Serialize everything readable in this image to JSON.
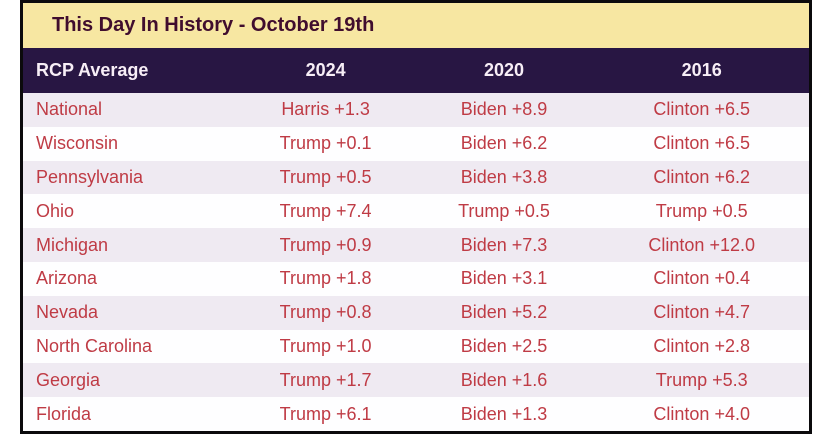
{
  "title": "This Day In History - October 19th",
  "colors": {
    "title_bar_bg": "#f7e7a2",
    "title_text": "#400d2e",
    "header_bg": "#281643",
    "header_text": "#f7eef6",
    "row_text": "#bf3b45",
    "row_odd_bg": "#efeaf2",
    "row_even_bg": "#fefeff",
    "border": "#0b0a0c"
  },
  "table": {
    "columns": [
      "RCP Average",
      "2024",
      "2020",
      "2016"
    ],
    "rows": [
      [
        "National",
        "Harris +1.3",
        "Biden +8.9",
        "Clinton +6.5"
      ],
      [
        "Wisconsin",
        "Trump +0.1",
        "Biden +6.2",
        "Clinton +6.5"
      ],
      [
        "Pennsylvania",
        "Trump +0.5",
        "Biden +3.8",
        "Clinton +6.2"
      ],
      [
        "Ohio",
        "Trump +7.4",
        "Trump +0.5",
        "Trump +0.5"
      ],
      [
        "Michigan",
        "Trump +0.9",
        "Biden +7.3",
        "Clinton +12.0"
      ],
      [
        "Arizona",
        "Trump +1.8",
        "Biden +3.1",
        "Clinton +0.4"
      ],
      [
        "Nevada",
        "Trump +0.8",
        "Biden +5.2",
        "Clinton +4.7"
      ],
      [
        "North Carolina",
        "Trump +1.0",
        "Biden +2.5",
        "Clinton +2.8"
      ],
      [
        "Georgia",
        "Trump +1.7",
        "Biden +1.6",
        "Trump +5.3"
      ],
      [
        "Florida",
        "Trump +6.1",
        "Biden +1.3",
        "Clinton +4.0"
      ]
    ]
  },
  "chart_data": {
    "type": "table",
    "title": "This Day In History - October 19th",
    "columns": [
      "RCP Average",
      "2024",
      "2020",
      "2016"
    ],
    "rows": [
      [
        "National",
        "Harris +1.3",
        "Biden +8.9",
        "Clinton +6.5"
      ],
      [
        "Wisconsin",
        "Trump +0.1",
        "Biden +6.2",
        "Clinton +6.5"
      ],
      [
        "Pennsylvania",
        "Trump +0.5",
        "Biden +3.8",
        "Clinton +6.2"
      ],
      [
        "Ohio",
        "Trump +7.4",
        "Trump +0.5",
        "Trump +0.5"
      ],
      [
        "Michigan",
        "Trump +0.9",
        "Biden +7.3",
        "Clinton +12.0"
      ],
      [
        "Arizona",
        "Trump +1.8",
        "Biden +3.1",
        "Clinton +0.4"
      ],
      [
        "Nevada",
        "Trump +0.8",
        "Biden +5.2",
        "Clinton +4.7"
      ],
      [
        "North Carolina",
        "Trump +1.0",
        "Biden +2.5",
        "Clinton +2.8"
      ],
      [
        "Georgia",
        "Trump +1.7",
        "Biden +1.6",
        "Trump +5.3"
      ],
      [
        "Florida",
        "Trump +6.1",
        "Biden +1.3",
        "Clinton +4.0"
      ]
    ]
  }
}
